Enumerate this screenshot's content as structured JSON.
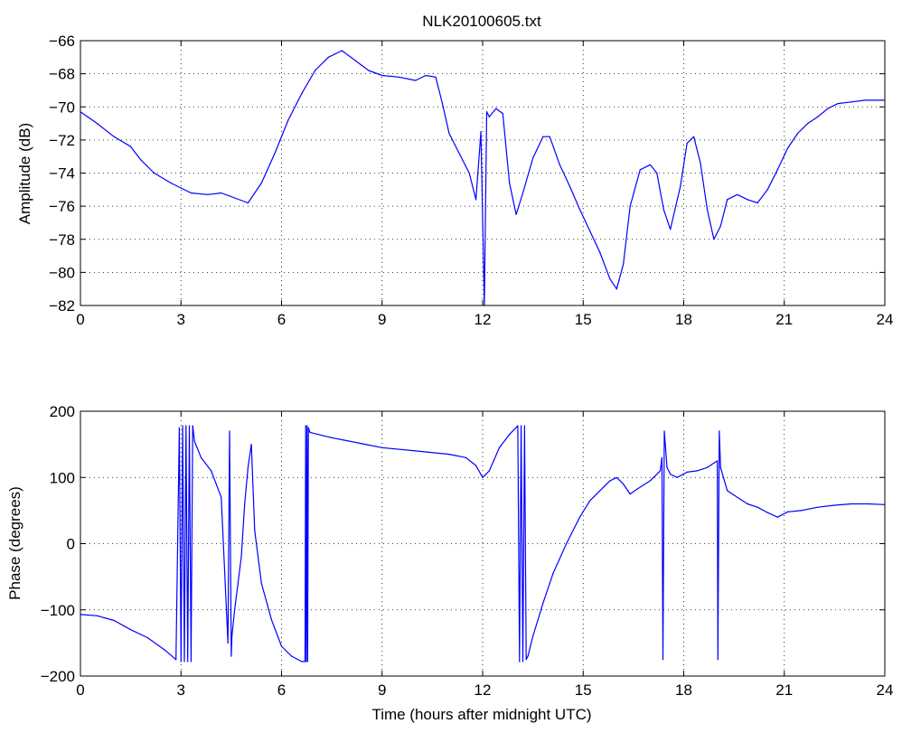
{
  "chart_data": [
    {
      "type": "line",
      "title": "NLK20100605.txt",
      "xlabel": "",
      "ylabel": "Amplitude (dB)",
      "xlim": [
        0,
        24
      ],
      "ylim": [
        -82,
        -66
      ],
      "xticks": [
        0,
        3,
        6,
        9,
        12,
        15,
        18,
        21,
        24
      ],
      "yticks": [
        -82,
        -80,
        -78,
        -76,
        -74,
        -72,
        -70,
        -68,
        -66
      ],
      "xtick_labels": [
        "0",
        "3",
        "6",
        "9",
        "12",
        "15",
        "18",
        "21",
        "24"
      ],
      "ytick_labels": [
        "−82",
        "−80",
        "−78",
        "−76",
        "−74",
        "−72",
        "−70",
        "−68",
        "−66"
      ],
      "grid": true,
      "line_color": "#0000ff",
      "series": [
        {
          "x": [
            0,
            0.5,
            1.0,
            1.5,
            1.8,
            2.2,
            2.7,
            3.0,
            3.3,
            3.8,
            4.2,
            4.6,
            5.0,
            5.4,
            5.8,
            6.2,
            6.6,
            7.0,
            7.4,
            7.8,
            8.2,
            8.6,
            9.0,
            9.5,
            10.0,
            10.3,
            10.6,
            10.8,
            11.0,
            11.3,
            11.6,
            11.8,
            11.95,
            12.05,
            12.12,
            12.2,
            12.4,
            12.6,
            12.8,
            13.0,
            13.2,
            13.5,
            13.8,
            14.0,
            14.3,
            14.6,
            14.9,
            15.2,
            15.5,
            15.8,
            16.0,
            16.2,
            16.4,
            16.7,
            17.0,
            17.2,
            17.4,
            17.6,
            17.9,
            18.1,
            18.3,
            18.5,
            18.7,
            18.9,
            19.1,
            19.3,
            19.6,
            19.9,
            20.2,
            20.5,
            20.8,
            21.1,
            21.4,
            21.7,
            22.0,
            22.3,
            22.6,
            23.0,
            23.4,
            23.8,
            24.0
          ],
          "values": [
            -70.3,
            -71.0,
            -71.8,
            -72.4,
            -73.2,
            -74.0,
            -74.6,
            -74.9,
            -75.2,
            -75.3,
            -75.2,
            -75.5,
            -75.8,
            -74.6,
            -72.8,
            -70.8,
            -69.2,
            -67.8,
            -67.0,
            -66.6,
            -67.2,
            -67.8,
            -68.1,
            -68.2,
            -68.4,
            -68.1,
            -68.2,
            -69.8,
            -71.6,
            -72.8,
            -74.0,
            -75.6,
            -71.5,
            -82.0,
            -70.3,
            -70.6,
            -70.1,
            -70.4,
            -74.6,
            -76.5,
            -75.2,
            -73.1,
            -71.8,
            -71.8,
            -73.5,
            -74.8,
            -76.2,
            -77.5,
            -78.8,
            -80.4,
            -81.0,
            -79.5,
            -76.0,
            -73.8,
            -73.5,
            -74.0,
            -76.2,
            -77.4,
            -74.8,
            -72.2,
            -71.8,
            -73.4,
            -76.2,
            -78.0,
            -77.2,
            -75.6,
            -75.3,
            -75.6,
            -75.8,
            -75.0,
            -73.8,
            -72.5,
            -71.6,
            -71.0,
            -70.6,
            -70.1,
            -69.8,
            -69.7,
            -69.6,
            -69.6,
            -69.6
          ]
        }
      ]
    },
    {
      "type": "line",
      "title": "",
      "xlabel": "Time (hours after midnight UTC)",
      "ylabel": "Phase (degrees)",
      "xlim": [
        0,
        24
      ],
      "ylim": [
        -200,
        200
      ],
      "xticks": [
        0,
        3,
        6,
        9,
        12,
        15,
        18,
        21,
        24
      ],
      "yticks": [
        -200,
        -100,
        0,
        100,
        200
      ],
      "xtick_labels": [
        "0",
        "3",
        "6",
        "9",
        "12",
        "15",
        "18",
        "21",
        "24"
      ],
      "ytick_labels": [
        "−200",
        "−100",
        "0",
        "100",
        "200"
      ],
      "grid": true,
      "line_color": "#0000ff",
      "series": [
        {
          "x": [
            0,
            0.5,
            1.0,
            1.5,
            2.0,
            2.5,
            2.85,
            2.95,
            3.0,
            3.05,
            3.1,
            3.15,
            3.2,
            3.25,
            3.3,
            3.35,
            3.4,
            3.6,
            3.9,
            4.2,
            4.4,
            4.45,
            4.5,
            4.52,
            4.6,
            4.8,
            4.9,
            5.0,
            5.1,
            5.2,
            5.4,
            5.7,
            6.0,
            6.3,
            6.6,
            6.7,
            6.72,
            6.74,
            6.76,
            6.78,
            6.8,
            6.85,
            7.5,
            8.5,
            9.0,
            10.0,
            11.0,
            11.5,
            11.8,
            12.0,
            12.2,
            12.5,
            12.8,
            13.05,
            13.1,
            13.15,
            13.2,
            13.25,
            13.3,
            13.35,
            13.5,
            13.8,
            14.1,
            14.5,
            14.9,
            15.2,
            15.5,
            15.8,
            16.0,
            16.2,
            16.4,
            16.6,
            17.0,
            17.3,
            17.35,
            17.38,
            17.42,
            17.5,
            17.6,
            17.8,
            18.1,
            18.4,
            18.7,
            19.0,
            19.02,
            19.06,
            19.1,
            19.3,
            19.6,
            19.9,
            20.2,
            20.5,
            20.8,
            21.1,
            21.5,
            22.0,
            22.5,
            23.0,
            23.5,
            24.0
          ],
          "values": [
            -107,
            -109,
            -116,
            -130,
            -142,
            -160,
            -175,
            175,
            -178,
            178,
            -178,
            178,
            -178,
            178,
            -178,
            178,
            155,
            130,
            110,
            70,
            -150,
            170,
            -170,
            -140,
            -100,
            -20,
            60,
            115,
            150,
            20,
            -60,
            -115,
            -155,
            -170,
            -178,
            -178,
            178,
            -178,
            178,
            -178,
            175,
            168,
            160,
            150,
            145,
            140,
            135,
            130,
            118,
            100,
            110,
            145,
            165,
            178,
            -178,
            178,
            -178,
            178,
            -175,
            -170,
            -140,
            -90,
            -45,
            0,
            40,
            65,
            80,
            95,
            100,
            90,
            75,
            82,
            95,
            110,
            130,
            -175,
            170,
            115,
            105,
            100,
            108,
            110,
            115,
            125,
            -175,
            170,
            115,
            80,
            70,
            60,
            55,
            47,
            40,
            48,
            50,
            55,
            58,
            60,
            60,
            59
          ]
        }
      ]
    }
  ]
}
